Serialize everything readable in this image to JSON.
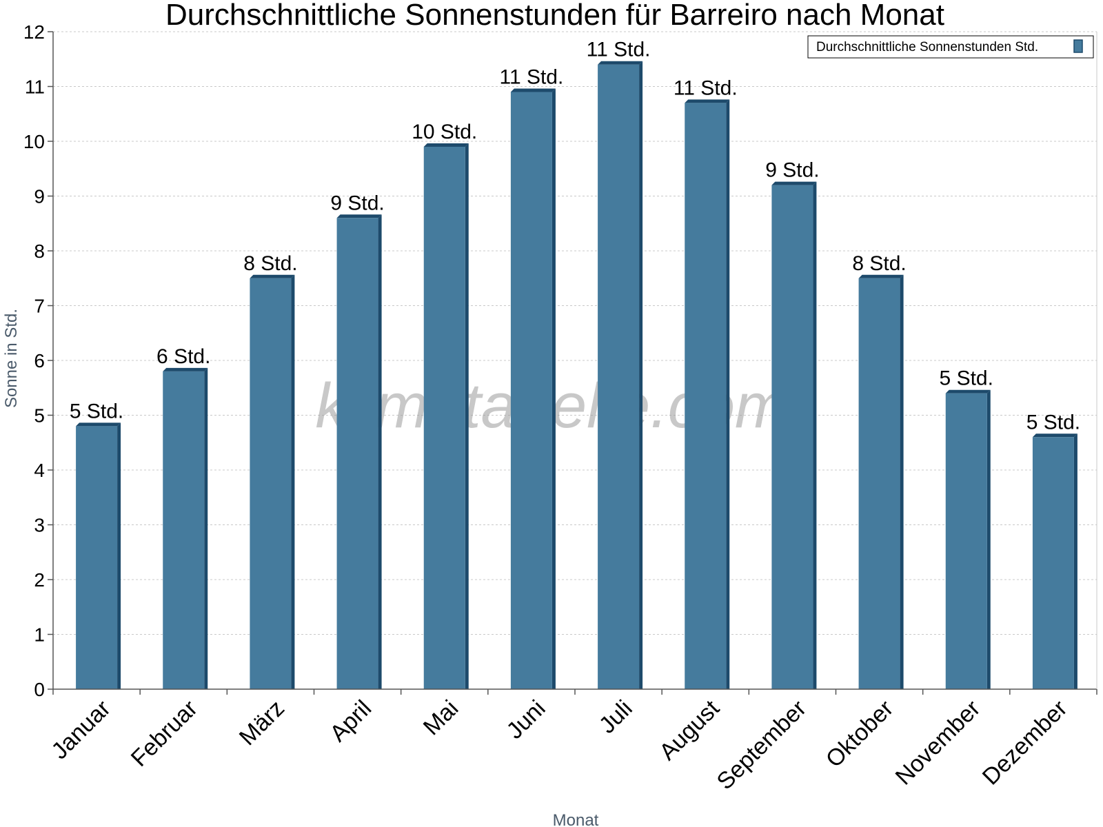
{
  "chart_data": {
    "type": "bar",
    "title": "Durchschnittliche Sonnenstunden für Barreiro nach Monat",
    "xlabel": "Monat",
    "ylabel": "Sonne in Std.",
    "ylim": [
      0,
      12
    ],
    "yticks": [
      0,
      1,
      2,
      3,
      4,
      5,
      6,
      7,
      8,
      9,
      10,
      11,
      12
    ],
    "grid": true,
    "legend_position": "top-right",
    "categories": [
      "Januar",
      "Februar",
      "März",
      "April",
      "Mai",
      "Juni",
      "Juli",
      "August",
      "September",
      "Oktober",
      "November",
      "Dezember"
    ],
    "series": [
      {
        "name": "Durchschnittliche Sonnenstunden Std.",
        "values": [
          4.8,
          5.8,
          7.5,
          8.6,
          9.9,
          10.9,
          11.4,
          10.7,
          9.2,
          7.5,
          5.4,
          4.6
        ],
        "labels": [
          "5 Std.",
          "6 Std.",
          "8 Std.",
          "9 Std.",
          "10 Std.",
          "11 Std.",
          "11 Std.",
          "11 Std.",
          "9 Std.",
          "8 Std.",
          "5 Std.",
          "5 Std."
        ]
      }
    ],
    "colors": {
      "bar": "#457b9d",
      "bar_shade": "#1d4a6b",
      "grid": "#c8c8c8",
      "axis": "#555555"
    },
    "watermark": "klimatabelle.com"
  }
}
